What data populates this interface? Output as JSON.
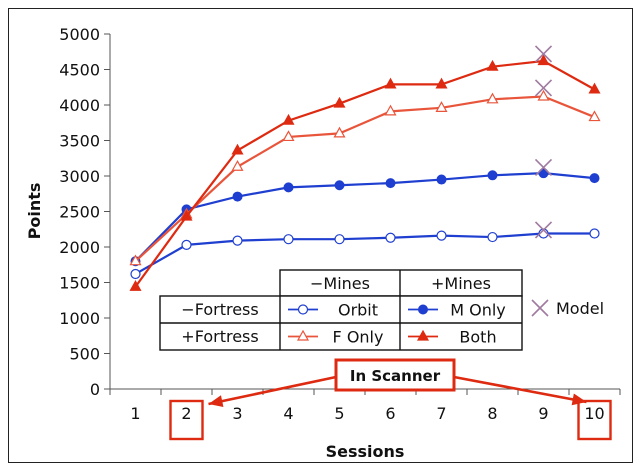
{
  "chart_data": {
    "type": "line",
    "xlabel": "Sessions",
    "ylabel": "Points",
    "x": [
      1,
      2,
      3,
      4,
      5,
      6,
      7,
      8,
      9,
      10
    ],
    "xlim": [
      0.5,
      10.5
    ],
    "ylim": [
      0,
      5000
    ],
    "yticks": [
      0,
      500,
      1000,
      1500,
      2000,
      2500,
      3000,
      3500,
      4000,
      4500,
      5000
    ],
    "grid": "none",
    "series": [
      {
        "name": "Orbit",
        "color": "#1f3fd0",
        "marker": "open-circle",
        "values": [
          1620,
          2030,
          2090,
          2110,
          2110,
          2130,
          2160,
          2140,
          2190,
          2190
        ]
      },
      {
        "name": "M Only",
        "color": "#1f3fd0",
        "marker": "filled-circle",
        "values": [
          1800,
          2530,
          2710,
          2840,
          2870,
          2900,
          2950,
          3010,
          3040,
          2970
        ]
      },
      {
        "name": "F Only",
        "color": "#e8553b",
        "marker": "open-triangle",
        "values": [
          1800,
          2460,
          3130,
          3550,
          3600,
          3910,
          3960,
          4080,
          4120,
          3830
        ]
      },
      {
        "name": "Both",
        "color": "#dd2a10",
        "marker": "filled-triangle",
        "values": [
          1440,
          2430,
          3360,
          3780,
          4020,
          4290,
          4290,
          4540,
          4620,
          4220
        ]
      }
    ],
    "model": {
      "name": "Model",
      "color": "#a07aa0",
      "marker": "x",
      "x": 9,
      "values": [
        2240,
        3120,
        4240,
        4720
      ]
    },
    "legend": {
      "col_headers": [
        "−Mines",
        "+Mines"
      ],
      "row_headers": [
        "−Fortress",
        "+Fortress"
      ],
      "cells": [
        [
          "Orbit",
          "M Only"
        ],
        [
          "F Only",
          "Both"
        ]
      ],
      "extra": "Model"
    },
    "annotation": {
      "text": "In Scanner",
      "highlight_sessions": [
        "2",
        "10"
      ]
    }
  }
}
